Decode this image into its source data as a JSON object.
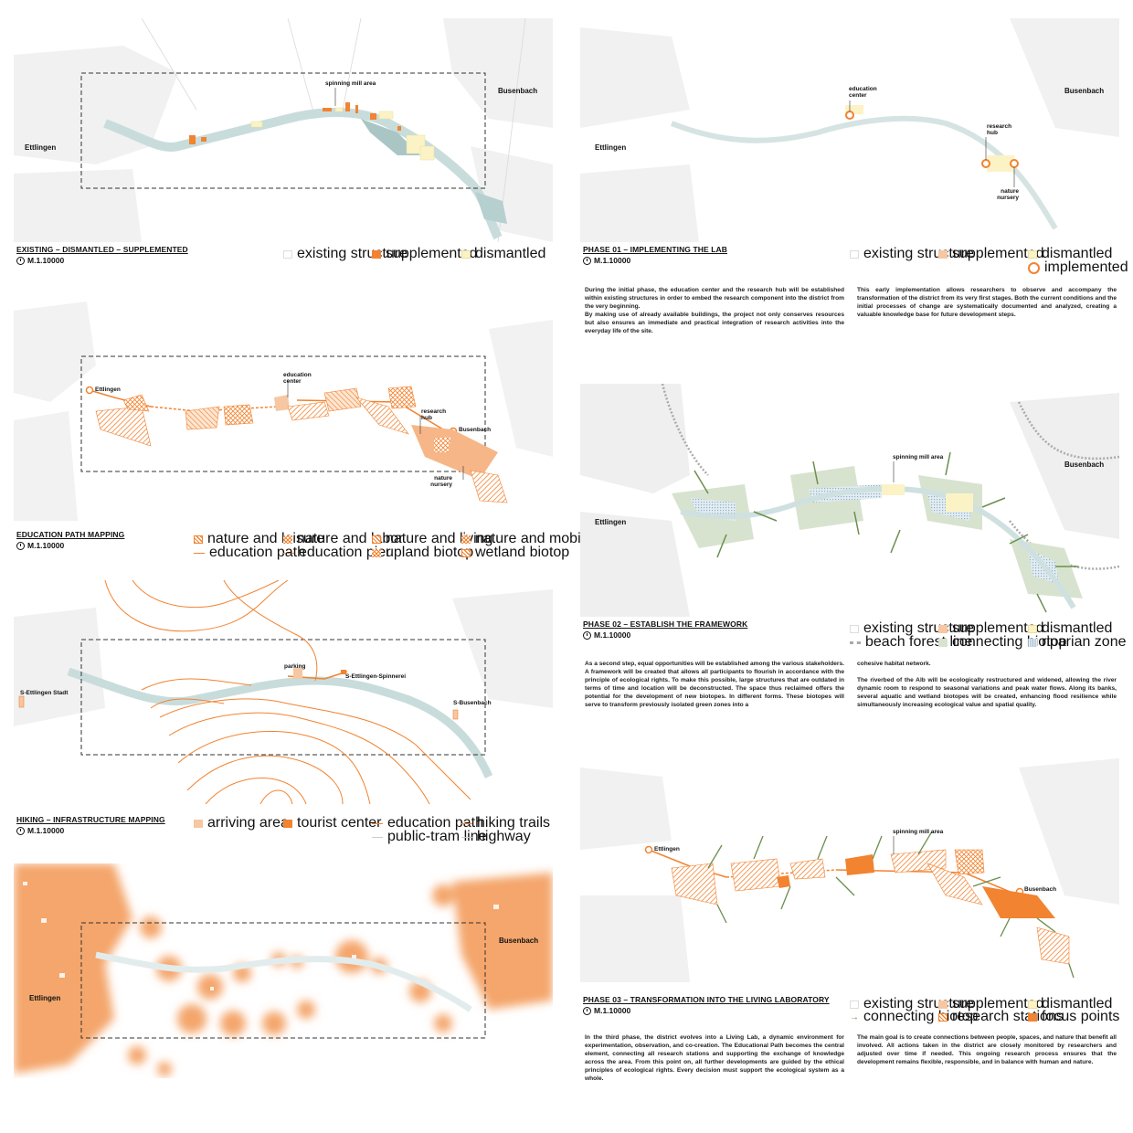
{
  "places": {
    "ettlingen": "Ettlingen",
    "busenbach": "Busenbach"
  },
  "panel1": {
    "title": "EXISTING – DISMANTLED – SUPPLEMENTED",
    "scale": "M.1.10000",
    "labels": {
      "mill": "spinning mill area"
    },
    "legend": [
      "existing structure",
      "supplemented",
      "dismantled"
    ]
  },
  "panel2": {
    "title": "EDUCATION PATH MAPPING",
    "scale": "M.1.10000",
    "labels": {
      "education_center": "education center",
      "research_hub": "research hub",
      "nature_nursery": "nature nursery"
    },
    "legend": [
      "nature and leisure",
      "nature and labor",
      "nature and living",
      "nature and mobility",
      "education path",
      "education pier",
      "upland biotop",
      "wetland biotop"
    ]
  },
  "panel3": {
    "title": "HIKING – INFRASTRUCTURE MAPPING",
    "scale": "M.1.10000",
    "labels": {
      "parking": "parking",
      "stadt": "S-Ettlingen Stadt",
      "spinnerei": "S-Ettlingen-Spinnerei",
      "busenbach": "S-Busenbach"
    },
    "legend": [
      "arriving area",
      "tourist center",
      "education path",
      "hiking trails",
      "public-tram line",
      "highway"
    ]
  },
  "panel5": {
    "title": "PHASE 01 – IMPLEMENTING THE LAB",
    "scale": "M.1.10000",
    "labels": {
      "education_center": "education center",
      "research_hub": "research hub",
      "nature_nursery": "nature nursery"
    },
    "legend": [
      "existing structure",
      "supplemented",
      "dismantled",
      "implemented research"
    ],
    "text_left": "During the initial phase, the education center and the research hub will be established within existing structures in order to embed the research component into the district from the very beginning.\nBy making use of already available buildings, the project not only conserves resources but also ensures an immediate and practical integration of research activities into the everyday life of the site.",
    "text_right": "This early implementation allows researchers to observe and accompany the transformation of the district from its very first stages. Both the current conditions and the initial processes of change are systematically documented and analyzed, creating a valuable knowledge base for future development steps."
  },
  "panel6": {
    "title": "PHASE 02 – ESTABLISH THE FRAMEWORK",
    "scale": "M.1.10000",
    "labels": {
      "mill": "spinning mill area"
    },
    "legend": [
      "existing structure",
      "supplemented",
      "dismantled",
      "beach forest line",
      "connecting biotop",
      "riparian zone"
    ],
    "text_left": "As a second step, equal opportunities will be established among the various stakeholders.\nA framework will be created that allows all participants to flourish in accordance with the principle of ecological rights. To make this possible, large structures that are outdated in terms of time and location will be deconstructed. The space thus reclaimed offers the potential for the development of new biotopes. In different forms. These biotopes will serve to transform previously isolated green zones into a",
    "text_right": "cohesive habitat network.\n\nThe riverbed of the Alb will be ecologically restructured and widened, allowing the river dynamic room to respond to seasonal variations and peak water flows. Along its banks, several aquatic and wetland biotopes will be created, enhancing flood resilience while simultaneously increasing ecological value and spatial quality."
  },
  "panel7": {
    "title": "PHASE 03 – TRANSFORMATION INTO THE LIVING LABORATORY",
    "scale": "M.1.10000",
    "labels": {
      "mill": "spinning mill area",
      "ettlingen": "Ettlingen",
      "busenbach": "Busenbach"
    },
    "legend": [
      "existing structure",
      "supplemented",
      "dismantled",
      "connecting biotop",
      "research stations",
      "focus points"
    ],
    "text_left": "In the third phase, the district evolves into a Living Lab, a dynamic environment for experimentation, observation, and co-creation. The Educational Path becomes the central element, connecting all research stations and supporting the exchange of knowledge across the area. From this point on, all further developments are guided by the ethical principles of ecological rights. Every decision must support the ecological system as a whole.",
    "text_right": "The main goal is to create connections between people, spaces, and nature that benefit all involved. All actions taken in the district are closely monitored by researchers and adjusted over time if needed. This ongoing research process ensures that the development remains flexible, responsible, and in balance with human and nature."
  },
  "colors": {
    "orange": "#f28330",
    "river": "#c9dcdc",
    "green": "#6b8f4e",
    "dismantled": "#fbf3c6"
  }
}
